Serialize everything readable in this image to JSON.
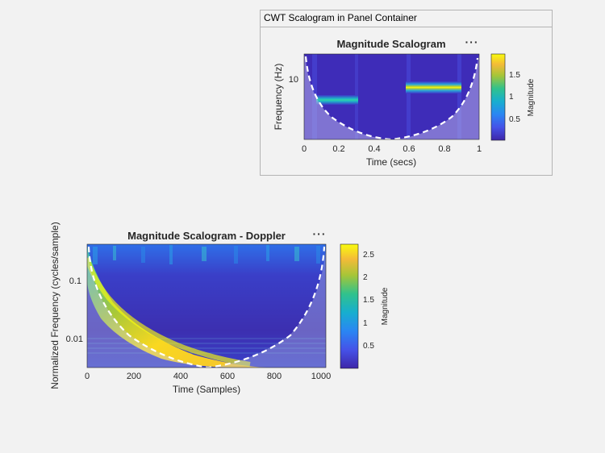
{
  "panel": {
    "title": "CWT Scalogram in Panel Container"
  },
  "plots": [
    {
      "title": "Magnitude Scalogram",
      "xlabel": "Time (secs)",
      "ylabel": "Frequency (Hz)",
      "xticks": [
        "0",
        "0.2",
        "0.4",
        "0.6",
        "0.8",
        "1"
      ],
      "yticks": [
        "10"
      ],
      "colorbar_label": "Magnitude",
      "colorbar_ticks": [
        "0.5",
        "1",
        "1.5"
      ],
      "menu_icon": "ellipsis-icon"
    },
    {
      "title": "Magnitude Scalogram - Doppler",
      "xlabel": "Time (Samples)",
      "ylabel": "Normalized Frequency  (cycles/sample)",
      "xticks": [
        "0",
        "200",
        "400",
        "600",
        "800",
        "1000"
      ],
      "yticks": [
        "0.1",
        "0.01"
      ],
      "colorbar_label": "Magnitude",
      "colorbar_ticks": [
        "0.5",
        "1",
        "1.5",
        "2",
        "2.5"
      ],
      "menu_icon": "ellipsis-icon"
    }
  ],
  "chart_data": [
    {
      "type": "heatmap",
      "title": "Magnitude Scalogram",
      "xlabel": "Time (secs)",
      "ylabel": "Frequency (Hz)",
      "xlim": [
        0,
        1
      ],
      "yscale": "log",
      "colorbar": {
        "label": "Magnitude",
        "range": [
          0,
          1.9
        ],
        "ticks": [
          0.5,
          1,
          1.5
        ]
      },
      "features": [
        {
          "label": "",
          "x_range": [
            0.1,
            0.3
          ],
          "magnitude": 0.8
        },
        {
          "label": "",
          "x_range": [
            0.6,
            0.9
          ],
          "magnitude": 1.9
        }
      ],
      "cone_of_influence": true
    },
    {
      "type": "heatmap",
      "title": "Magnitude Scalogram - Doppler",
      "xlabel": "Time (Samples)",
      "ylabel": "Normalized Frequency  (cycles/sample)",
      "xlim": [
        0,
        1024
      ],
      "yscale": "log",
      "yticks": [
        0.1,
        0.01
      ],
      "colorbar": {
        "label": "Magnitude",
        "range": [
          0,
          2.7
        ],
        "ticks": [
          0.5,
          1,
          1.5,
          2,
          2.5
        ]
      },
      "cone_of_influence": true
    }
  ]
}
